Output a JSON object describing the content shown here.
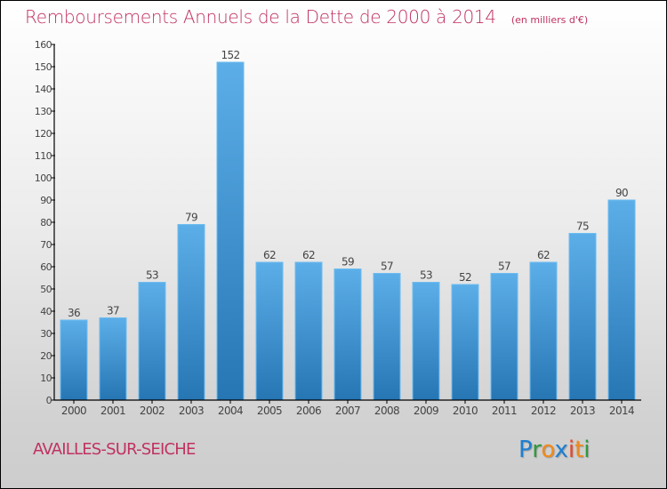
{
  "colors": {
    "title": "#c0325f",
    "bar_top": "#5caee8",
    "bar_bottom": "#2676b4",
    "bar_edge": "#6cbcf0",
    "axis": "#000000",
    "text": "#444444"
  },
  "header": {
    "title": "Remboursements Annuels de la Dette de 2000 à 2014",
    "subtitle": "(en milliers d'€)"
  },
  "footer": {
    "commune": "AVAILLES-SUR-SEICHE",
    "logo_letters": [
      {
        "ch": "P",
        "color": "#1f7fd0"
      },
      {
        "ch": "r",
        "color": "#2e9b3a"
      },
      {
        "ch": "o",
        "color": "#f08a1c"
      },
      {
        "ch": "x",
        "color": "#1f7fd0"
      },
      {
        "ch": "i",
        "color": "#e8452a"
      },
      {
        "ch": "t",
        "color": "#f08a1c"
      },
      {
        "ch": "i",
        "color": "#2e9b3a"
      }
    ]
  },
  "chart_data": {
    "type": "bar",
    "title": "Remboursements Annuels de la Dette de 2000 à 2014",
    "subtitle": "(en milliers d'€)",
    "xlabel": "",
    "ylabel": "",
    "categories": [
      "2000",
      "2001",
      "2002",
      "2003",
      "2004",
      "2005",
      "2006",
      "2007",
      "2008",
      "2009",
      "2010",
      "2011",
      "2012",
      "2013",
      "2014"
    ],
    "values": [
      36,
      37,
      53,
      79,
      152,
      62,
      62,
      59,
      57,
      53,
      52,
      57,
      62,
      75,
      90
    ],
    "ylim": [
      0,
      160
    ],
    "yticks": [
      0,
      10,
      20,
      30,
      40,
      50,
      60,
      70,
      80,
      90,
      100,
      110,
      120,
      130,
      140,
      150,
      160
    ],
    "grid": false,
    "legend": "none",
    "data_labels": true
  }
}
